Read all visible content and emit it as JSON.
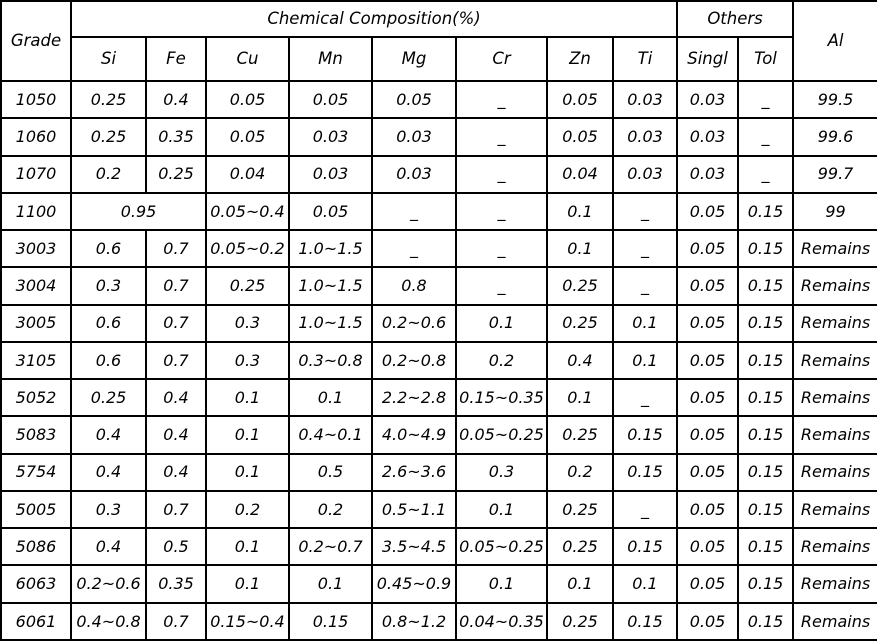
{
  "page": {
    "background_color": "#ffffff",
    "text_color": "#000000",
    "border_color": "#000000"
  },
  "table": {
    "header": {
      "grade": "Grade",
      "chemical_composition": "Chemical Composition(%)",
      "others": "Others",
      "al": "Al",
      "elements": [
        "Si",
        "Fe",
        "Cu",
        "Mn",
        "Mg",
        "Cr",
        "Zn",
        "Ti"
      ],
      "others_sub": [
        "Singl",
        "Tol"
      ]
    },
    "columns": [
      "Grade",
      "Si",
      "Fe",
      "Cu",
      "Mn",
      "Mg",
      "Cr",
      "Zn",
      "Ti",
      "Singl",
      "Tol",
      "Al"
    ],
    "rows": [
      {
        "cells": [
          "1050",
          "0.25",
          "0.4",
          "0.05",
          "0.05",
          "0.05",
          "_",
          "0.05",
          "0.03",
          "0.03",
          "_",
          "99.5"
        ]
      },
      {
        "cells": [
          "1060",
          "0.25",
          "0.35",
          "0.05",
          "0.03",
          "0.03",
          "_",
          "0.05",
          "0.03",
          "0.03",
          "_",
          "99.6"
        ]
      },
      {
        "cells": [
          "1070",
          "0.2",
          "0.25",
          "0.04",
          "0.03",
          "0.03",
          "_",
          "0.04",
          "0.03",
          "0.03",
          "_",
          "99.7"
        ]
      },
      {
        "cells": [
          "1100",
          {
            "v": "0.95",
            "colspan": 2
          },
          "0.05~0.4",
          "0.05",
          "_",
          "_",
          "0.1",
          "_",
          "0.05",
          "0.15",
          "99"
        ]
      },
      {
        "cells": [
          "3003",
          "0.6",
          "0.7",
          "0.05~0.2",
          "1.0~1.5",
          "_",
          "_",
          "0.1",
          "_",
          "0.05",
          "0.15",
          "Remains"
        ]
      },
      {
        "cells": [
          "3004",
          "0.3",
          "0.7",
          "0.25",
          "1.0~1.5",
          "0.8",
          "_",
          "0.25",
          "_",
          "0.05",
          "0.15",
          "Remains"
        ]
      },
      {
        "cells": [
          "3005",
          "0.6",
          "0.7",
          "0.3",
          "1.0~1.5",
          "0.2~0.6",
          "0.1",
          "0.25",
          "0.1",
          "0.05",
          "0.15",
          "Remains"
        ]
      },
      {
        "cells": [
          "3105",
          "0.6",
          "0.7",
          "0.3",
          "0.3~0.8",
          "0.2~0.8",
          "0.2",
          "0.4",
          "0.1",
          "0.05",
          "0.15",
          "Remains"
        ]
      },
      {
        "cells": [
          "5052",
          "0.25",
          "0.4",
          "0.1",
          "0.1",
          "2.2~2.8",
          "0.15~0.35",
          "0.1",
          "_",
          "0.05",
          "0.15",
          "Remains"
        ]
      },
      {
        "cells": [
          "5083",
          "0.4",
          "0.4",
          "0.1",
          "0.4~0.1",
          "4.0~4.9",
          "0.05~0.25",
          "0.25",
          "0.15",
          "0.05",
          "0.15",
          "Remains"
        ]
      },
      {
        "cells": [
          "5754",
          "0.4",
          "0.4",
          "0.1",
          "0.5",
          "2.6~3.6",
          "0.3",
          "0.2",
          "0.15",
          "0.05",
          "0.15",
          "Remains"
        ]
      },
      {
        "cells": [
          "5005",
          "0.3",
          "0.7",
          "0.2",
          "0.2",
          "0.5~1.1",
          "0.1",
          "0.25",
          "_",
          "0.05",
          "0.15",
          "Remains"
        ]
      },
      {
        "cells": [
          "5086",
          "0.4",
          "0.5",
          "0.1",
          "0.2~0.7",
          "3.5~4.5",
          "0.05~0.25",
          "0.25",
          "0.15",
          "0.05",
          "0.15",
          "Remains"
        ]
      },
      {
        "cells": [
          "6063",
          "0.2~0.6",
          "0.35",
          "0.1",
          "0.1",
          "0.45~0.9",
          "0.1",
          "0.1",
          "0.1",
          "0.05",
          "0.15",
          "Remains"
        ]
      },
      {
        "cells": [
          "6061",
          "0.4~0.8",
          "0.7",
          "0.15~0.4",
          "0.15",
          "0.8~1.2",
          "0.04~0.35",
          "0.25",
          "0.15",
          "0.05",
          "0.15",
          "Remains"
        ]
      }
    ]
  }
}
